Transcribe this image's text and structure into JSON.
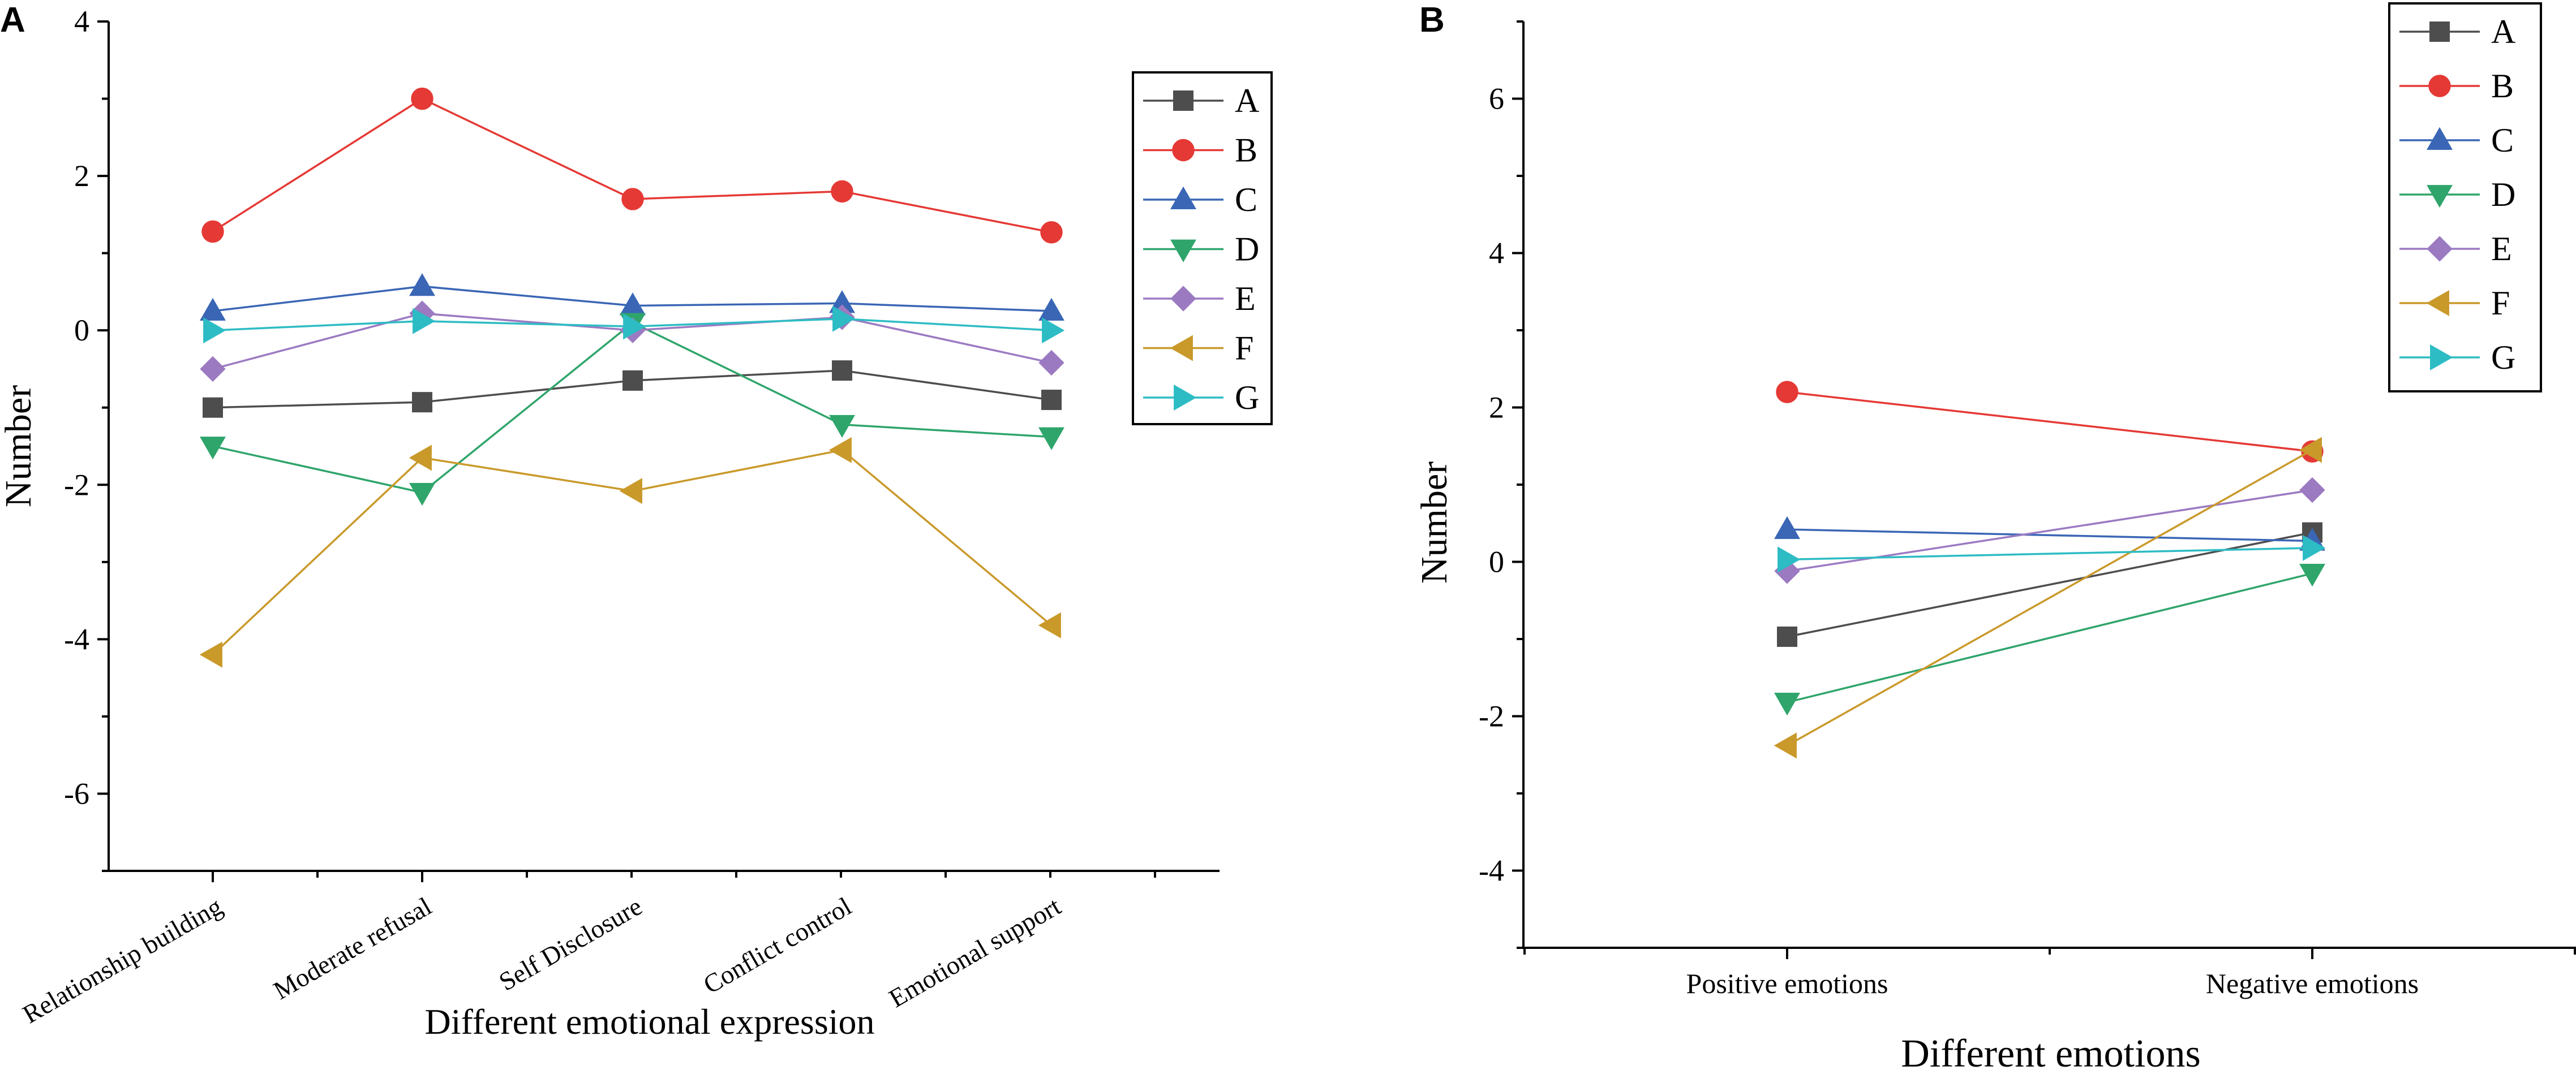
{
  "colors": {
    "A": "#4d4d4d",
    "B": "#e53935",
    "C": "#3a66b5",
    "D": "#2fa56b",
    "E": "#9b7ac2",
    "F": "#c9992a",
    "G": "#2dbcc4"
  },
  "chart_data": [
    {
      "panel": "A",
      "type": "line",
      "xlabel": "Different emotional expression",
      "ylabel": "Number",
      "categories": [
        "Relationship building",
        "Moderate refusal",
        "Self Disclosure",
        "Conflict control",
        "Emotional support"
      ],
      "ylim": [
        -7,
        4
      ],
      "yticks": [
        {
          "value": 4,
          "label": "4"
        },
        {
          "value": 2,
          "label": "2"
        },
        {
          "value": 0,
          "label": "0"
        },
        {
          "value": -2,
          "label": "-2"
        },
        {
          "value": -4,
          "label": "-4"
        },
        {
          "value": -6,
          "label": "-6"
        }
      ],
      "legend_position": "top-right",
      "series": [
        {
          "name": "A",
          "marker": "square",
          "values": [
            -1.0,
            -0.93,
            -0.65,
            -0.52,
            -0.9
          ]
        },
        {
          "name": "B",
          "marker": "circle",
          "values": [
            1.28,
            3.0,
            1.7,
            1.8,
            1.27
          ]
        },
        {
          "name": "C",
          "marker": "triangle-up",
          "values": [
            0.25,
            0.57,
            0.32,
            0.35,
            0.25
          ]
        },
        {
          "name": "D",
          "marker": "triangle-down",
          "values": [
            -1.5,
            -2.1,
            0.1,
            -1.22,
            -1.38
          ]
        },
        {
          "name": "E",
          "marker": "diamond",
          "values": [
            -0.5,
            0.22,
            0.0,
            0.17,
            -0.42
          ]
        },
        {
          "name": "F",
          "marker": "triangle-left",
          "values": [
            -4.2,
            -1.65,
            -2.08,
            -1.55,
            -3.82
          ]
        },
        {
          "name": "G",
          "marker": "triangle-right",
          "values": [
            0.0,
            0.12,
            0.05,
            0.15,
            0.0
          ]
        }
      ]
    },
    {
      "panel": "B",
      "type": "line",
      "xlabel": "Different emotions",
      "ylabel": "Number",
      "categories": [
        "Positive emotions",
        "Negative emotions"
      ],
      "ylim": [
        -5,
        7
      ],
      "yticks": [
        {
          "value": 6,
          "label": "6"
        },
        {
          "value": 4,
          "label": "4"
        },
        {
          "value": 2,
          "label": "2"
        },
        {
          "value": 0,
          "label": "0"
        },
        {
          "value": -2,
          "label": "-2"
        },
        {
          "value": -4,
          "label": "-4"
        }
      ],
      "legend_position": "top-right",
      "series": [
        {
          "name": "A",
          "marker": "square",
          "values": [
            -0.97,
            0.38
          ]
        },
        {
          "name": "B",
          "marker": "circle",
          "values": [
            2.2,
            1.43
          ]
        },
        {
          "name": "C",
          "marker": "triangle-up",
          "values": [
            0.42,
            0.27
          ]
        },
        {
          "name": "D",
          "marker": "triangle-down",
          "values": [
            -1.82,
            -0.15
          ]
        },
        {
          "name": "E",
          "marker": "diamond",
          "values": [
            -0.12,
            0.93
          ]
        },
        {
          "name": "F",
          "marker": "triangle-left",
          "values": [
            -2.38,
            1.45
          ]
        },
        {
          "name": "G",
          "marker": "triangle-right",
          "values": [
            0.03,
            0.18
          ]
        }
      ]
    }
  ]
}
